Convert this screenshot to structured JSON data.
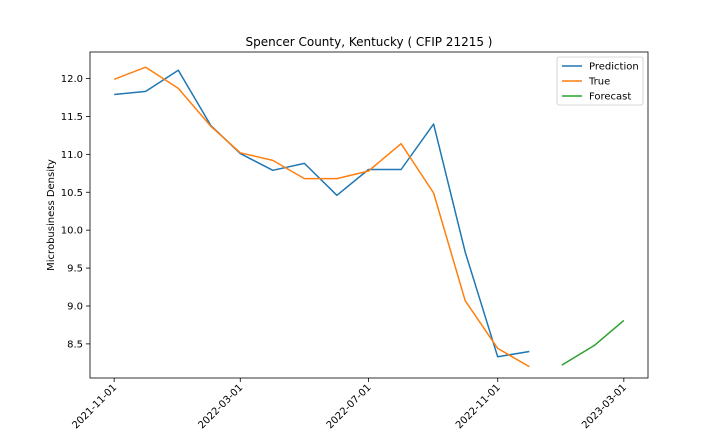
{
  "chart_data": {
    "type": "line",
    "title": "Spencer County, Kentucky ( CFIP 21215 )",
    "xlabel": "",
    "ylabel": "Microbusiness Density",
    "x_ticks": [
      "2021-11-01",
      "2022-03-01",
      "2022-07-01",
      "2022-11-01",
      "2023-03-01"
    ],
    "y_ticks": [
      "8.5",
      "9.0",
      "9.5",
      "10.0",
      "10.5",
      "11.0",
      "11.5",
      "12.0"
    ],
    "xlim": [
      "2021-10-09",
      "2023-03-24"
    ],
    "ylim": [
      8.05,
      12.35
    ],
    "grid": false,
    "legend_position": "top-right",
    "series": [
      {
        "name": "Prediction",
        "color": "#1f77b4",
        "x": [
          "2021-11-01",
          "2021-12-01",
          "2022-01-01",
          "2022-02-01",
          "2022-03-01",
          "2022-04-01",
          "2022-05-01",
          "2022-06-01",
          "2022-07-01",
          "2022-08-01",
          "2022-09-01",
          "2022-10-01",
          "2022-11-01",
          "2022-12-01"
        ],
        "y": [
          11.79,
          11.83,
          12.11,
          11.38,
          11.01,
          10.79,
          10.88,
          10.46,
          10.8,
          10.8,
          11.4,
          9.71,
          8.33,
          8.4
        ]
      },
      {
        "name": "True",
        "color": "#ff7f0e",
        "x": [
          "2021-11-01",
          "2021-12-01",
          "2022-01-01",
          "2022-02-01",
          "2022-03-01",
          "2022-04-01",
          "2022-05-01",
          "2022-06-01",
          "2022-07-01",
          "2022-08-01",
          "2022-09-01",
          "2022-10-01",
          "2022-11-01",
          "2022-12-01"
        ],
        "y": [
          11.99,
          12.15,
          11.87,
          11.37,
          11.02,
          10.92,
          10.68,
          10.68,
          10.78,
          11.14,
          10.49,
          9.07,
          8.44,
          8.2
        ]
      },
      {
        "name": "Forecast",
        "color": "#2ca02c",
        "x": [
          "2023-01-01",
          "2023-02-01",
          "2023-03-01"
        ],
        "y": [
          8.22,
          8.48,
          8.81
        ]
      }
    ]
  }
}
